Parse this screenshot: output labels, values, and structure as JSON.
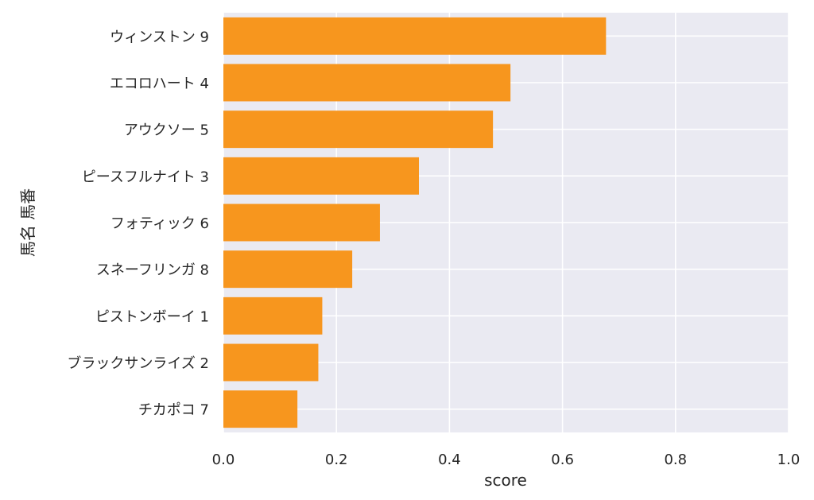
{
  "chart_data": {
    "type": "bar",
    "orientation": "horizontal",
    "categories": [
      "ウィンストン 9",
      "エコロハート 4",
      "アウクソー 5",
      "ピースフルナイト 3",
      "フォティック 6",
      "スネーフリンガ 8",
      "ピストンボーイ 1",
      "ブラックサンライズ 2",
      "チカポコ 7"
    ],
    "values": [
      0.677,
      0.508,
      0.477,
      0.346,
      0.277,
      0.228,
      0.175,
      0.168,
      0.131
    ],
    "xlabel": "score",
    "ylabel": "馬名 馬番",
    "xlim": [
      0,
      1.0
    ],
    "xticks": [
      "0.0",
      "0.2",
      "0.4",
      "0.6",
      "0.8",
      "1.0"
    ],
    "grid": true,
    "colors": {
      "bar": "#f7961e",
      "background": "#eaeaf2",
      "grid": "#ffffff"
    }
  }
}
